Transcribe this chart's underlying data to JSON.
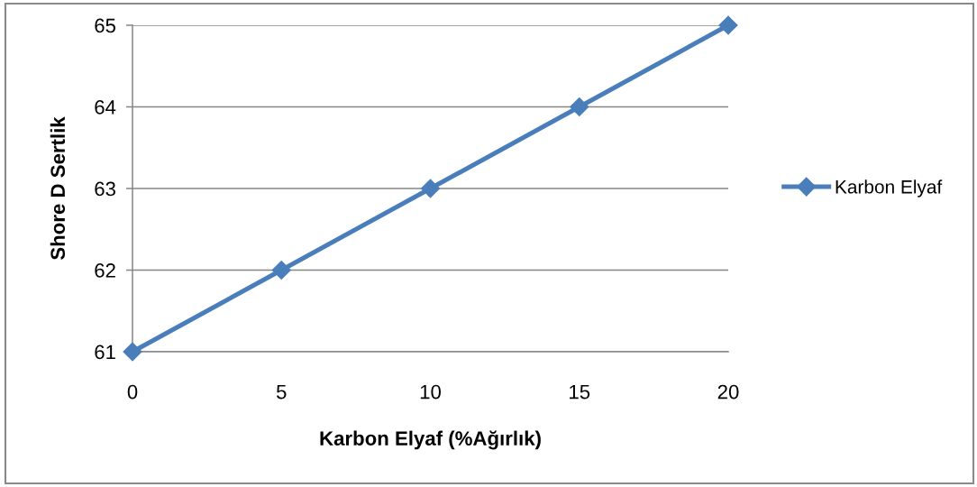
{
  "chart_data": {
    "type": "line",
    "xlabel": "Karbon Elyaf (%Ağırlık)",
    "ylabel": "Shore D Sertlik",
    "x": [
      0,
      5,
      10,
      15,
      20
    ],
    "series": [
      {
        "name": "Karbon Elyaf",
        "color": "#4a7ebb",
        "values": [
          61,
          62,
          63,
          64,
          65
        ]
      }
    ],
    "xlim": [
      0,
      20
    ],
    "xticks": [
      0,
      5,
      10,
      15,
      20
    ],
    "ylim": [
      61,
      65
    ],
    "yticks": [
      61,
      62,
      63,
      64,
      65
    ],
    "grid": "y",
    "legend": "right",
    "marker": "diamond",
    "line_style": "solid"
  }
}
